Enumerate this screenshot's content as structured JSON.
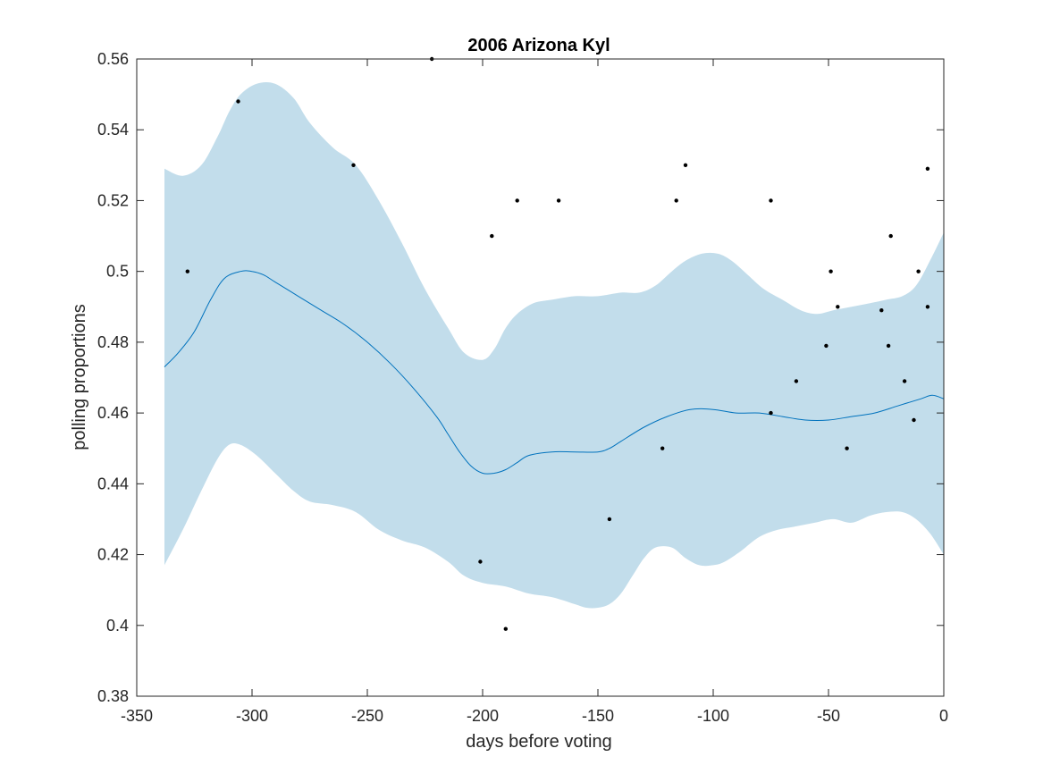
{
  "chart_data": {
    "type": "line",
    "title": "2006 Arizona Kyl",
    "xlabel": "days before voting",
    "ylabel": "polling proportions",
    "xlim": [
      -350,
      0
    ],
    "ylim": [
      0.38,
      0.56
    ],
    "xticks": [
      -350,
      -300,
      -250,
      -200,
      -150,
      -100,
      -50,
      0
    ],
    "xtick_labels": [
      "-350",
      "-300",
      "-250",
      "-200",
      "-150",
      "-100",
      "-50",
      "0"
    ],
    "yticks": [
      0.38,
      0.4,
      0.42,
      0.44,
      0.46,
      0.48,
      0.5,
      0.52,
      0.54,
      0.56
    ],
    "ytick_labels": [
      "0.38",
      "0.4",
      "0.42",
      "0.44",
      "0.46",
      "0.48",
      "0.5",
      "0.52",
      "0.54",
      "0.56"
    ],
    "grid": false,
    "box": true,
    "colors": {
      "line": "#0072BD",
      "band": "#C2DDEB",
      "points": "#000000",
      "axes": "#262626"
    },
    "series": [
      {
        "role": "mean",
        "x": [
          -338,
          -332,
          -325,
          -318,
          -312,
          -305,
          -300,
          -295,
          -290,
          -280,
          -270,
          -260,
          -250,
          -240,
          -230,
          -220,
          -215,
          -210,
          -205,
          -200,
          -195,
          -190,
          -185,
          -180,
          -170,
          -160,
          -150,
          -145,
          -140,
          -130,
          -120,
          -110,
          -100,
          -90,
          -80,
          -70,
          -60,
          -50,
          -40,
          -30,
          -20,
          -10,
          -5,
          0
        ],
        "y": [
          0.473,
          0.477,
          0.483,
          0.492,
          0.498,
          0.5,
          0.5,
          0.499,
          0.497,
          0.493,
          0.489,
          0.485,
          0.48,
          0.474,
          0.467,
          0.459,
          0.454,
          0.449,
          0.445,
          0.443,
          0.443,
          0.444,
          0.446,
          0.448,
          0.449,
          0.449,
          0.449,
          0.45,
          0.452,
          0.456,
          0.459,
          0.461,
          0.461,
          0.46,
          0.46,
          0.459,
          0.458,
          0.458,
          0.459,
          0.46,
          0.462,
          0.464,
          0.465,
          0.464
        ]
      },
      {
        "role": "band-upper",
        "x": [
          -338,
          -330,
          -322,
          -315,
          -310,
          -305,
          -298,
          -290,
          -282,
          -275,
          -265,
          -255,
          -245,
          -235,
          -225,
          -215,
          -208,
          -200,
          -195,
          -190,
          -185,
          -178,
          -170,
          -160,
          -150,
          -140,
          -132,
          -125,
          -118,
          -112,
          -105,
          -98,
          -92,
          -85,
          -78,
          -70,
          -62,
          -55,
          -48,
          -40,
          -32,
          -25,
          -18,
          -12,
          -6,
          0
        ],
        "y": [
          0.529,
          0.527,
          0.53,
          0.538,
          0.545,
          0.55,
          0.553,
          0.553,
          0.549,
          0.542,
          0.535,
          0.53,
          0.52,
          0.508,
          0.495,
          0.484,
          0.477,
          0.475,
          0.478,
          0.484,
          0.488,
          0.491,
          0.492,
          0.493,
          0.493,
          0.494,
          0.494,
          0.496,
          0.5,
          0.503,
          0.505,
          0.505,
          0.503,
          0.499,
          0.495,
          0.492,
          0.489,
          0.488,
          0.489,
          0.49,
          0.491,
          0.492,
          0.493,
          0.496,
          0.503,
          0.511
        ]
      },
      {
        "role": "band-lower",
        "x": [
          -338,
          -330,
          -322,
          -315,
          -310,
          -305,
          -298,
          -290,
          -282,
          -275,
          -265,
          -255,
          -245,
          -235,
          -225,
          -215,
          -208,
          -200,
          -190,
          -180,
          -170,
          -160,
          -155,
          -150,
          -145,
          -140,
          -135,
          -130,
          -125,
          -118,
          -112,
          -106,
          -100,
          -95,
          -88,
          -80,
          -72,
          -64,
          -56,
          -48,
          -40,
          -32,
          -25,
          -18,
          -12,
          -6,
          0
        ],
        "y": [
          0.417,
          0.427,
          0.438,
          0.447,
          0.451,
          0.451,
          0.448,
          0.443,
          0.438,
          0.435,
          0.434,
          0.432,
          0.427,
          0.424,
          0.422,
          0.418,
          0.414,
          0.412,
          0.411,
          0.409,
          0.408,
          0.406,
          0.405,
          0.405,
          0.406,
          0.409,
          0.414,
          0.419,
          0.422,
          0.422,
          0.419,
          0.417,
          0.417,
          0.418,
          0.421,
          0.425,
          0.427,
          0.428,
          0.429,
          0.43,
          0.429,
          0.431,
          0.432,
          0.432,
          0.43,
          0.426,
          0.42
        ]
      }
    ],
    "points": {
      "x": [
        -328,
        -306,
        -256,
        -222,
        -201,
        -196,
        -190,
        -185,
        -167,
        -145,
        -122,
        -116,
        -112,
        -75,
        -75,
        -64,
        -51,
        -49,
        -46,
        -42,
        -27,
        -24,
        -23,
        -17,
        -13,
        -11,
        -7,
        -7
      ],
      "y": [
        0.5,
        0.548,
        0.53,
        0.56,
        0.418,
        0.51,
        0.399,
        0.52,
        0.52,
        0.43,
        0.45,
        0.52,
        0.53,
        0.52,
        0.46,
        0.469,
        0.479,
        0.5,
        0.49,
        0.45,
        0.489,
        0.479,
        0.51,
        0.469,
        0.458,
        0.5,
        0.529,
        0.49
      ]
    }
  }
}
